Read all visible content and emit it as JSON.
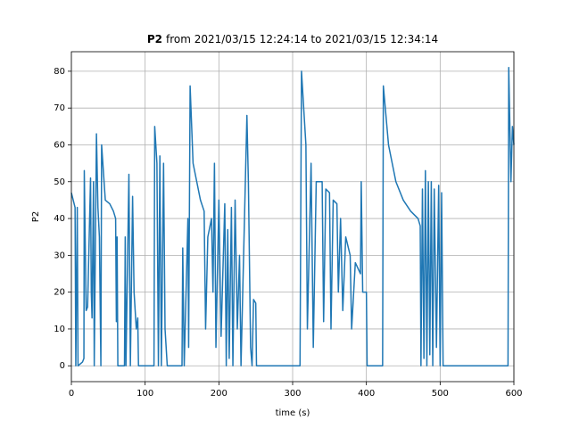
{
  "chart_data": {
    "type": "line",
    "title_bold": "P2",
    "title": "from 2021/03/15 12:24:14 to 2021/03/15 12:34:14",
    "x_label": "time (s)",
    "y_label": "P2",
    "xlim": [
      0,
      600
    ],
    "ylim": [
      -4.3,
      85.3
    ],
    "xticks": [
      0,
      100,
      200,
      300,
      400,
      500,
      600
    ],
    "yticks": [
      0,
      10,
      20,
      30,
      40,
      50,
      60,
      70,
      80
    ],
    "grid": true,
    "series": [
      {
        "color": "#1f77b4",
        "x": [
          0,
          5,
          6,
          8,
          9,
          15,
          17,
          17.5,
          20,
          22,
          26,
          27,
          28,
          30,
          31,
          34,
          36,
          38,
          40,
          41,
          46,
          52,
          57,
          60,
          61,
          62,
          63,
          72,
          73,
          74,
          78,
          80,
          83,
          85,
          88,
          90,
          91,
          112,
          113,
          116,
          118,
          120,
          122,
          125,
          127,
          130,
          150,
          151,
          153,
          158,
          159,
          161,
          165,
          170,
          175,
          180,
          182,
          185,
          190,
          192,
          194,
          196,
          200,
          203,
          208,
          210,
          212,
          214,
          217,
          219,
          222,
          225,
          228,
          230,
          238,
          240,
          243,
          245,
          247,
          250,
          251,
          310,
          312,
          318,
          320,
          325,
          328,
          332,
          340,
          342,
          345,
          350,
          352,
          355,
          360,
          362,
          365,
          368,
          372,
          378,
          380,
          385,
          392,
          393,
          395,
          400,
          401,
          422,
          423,
          430,
          440,
          450,
          460,
          470,
          473,
          474,
          476,
          478,
          480,
          482,
          484,
          486,
          488,
          490,
          492,
          495,
          498,
          500,
          502,
          504,
          592,
          593,
          596,
          598,
          600
        ],
        "values": [
          47,
          43,
          0,
          43,
          0,
          1,
          2,
          53,
          15,
          16,
          51,
          20,
          13,
          50,
          0,
          63,
          43,
          35,
          0,
          60,
          45,
          44,
          42,
          40,
          12,
          35,
          0,
          0,
          35,
          0,
          52,
          0,
          46,
          20,
          10,
          13,
          0,
          0,
          65,
          55,
          0,
          57,
          0,
          55,
          10,
          0,
          0,
          32,
          0,
          40,
          5,
          76,
          55,
          50,
          45,
          42,
          10,
          35,
          40,
          20,
          55,
          5,
          45,
          8,
          44,
          0,
          37,
          2,
          43,
          0,
          45,
          10,
          30,
          0,
          68,
          50,
          5,
          0,
          18,
          17,
          0,
          0,
          80,
          60,
          10,
          55,
          5,
          50,
          50,
          12,
          48,
          47,
          10,
          45,
          44,
          20,
          40,
          15,
          35,
          30,
          10,
          28,
          25,
          50,
          20,
          20,
          0,
          0,
          76,
          60,
          50,
          45,
          42,
          40,
          38,
          0,
          48,
          2,
          53,
          0,
          50,
          3,
          50,
          0,
          48,
          5,
          49,
          0,
          47,
          0,
          0,
          81,
          50,
          65,
          60
        ]
      }
    ]
  }
}
